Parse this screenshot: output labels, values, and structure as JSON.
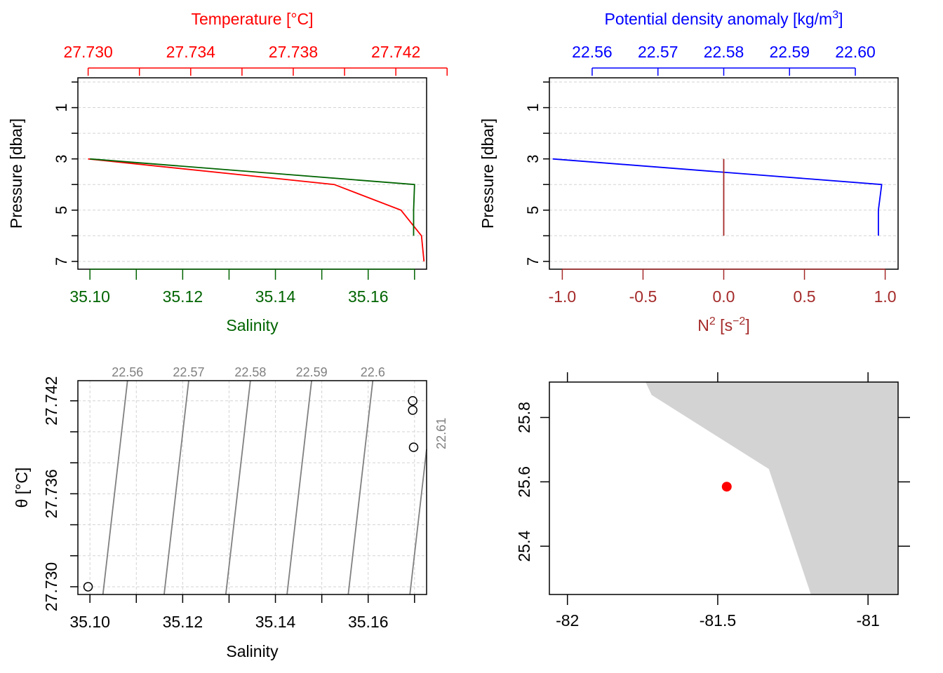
{
  "colors": {
    "temperature": "#ff0000",
    "salinity": "#006400",
    "density": "#0000ff",
    "n2": "#a52a2a",
    "contour": "#808080",
    "grid": "#d3d3d3",
    "land": "#d3d3d3",
    "station": "#ff0000",
    "axis": "#000000"
  },
  "chart_data": [
    {
      "id": "ts-profile",
      "type": "line",
      "top_title": "Temperature [°C]",
      "bottom_label": "Salinity",
      "ylabel": "Pressure [dbar]",
      "y_reversed": true,
      "ylim": [
        0,
        7.25
      ],
      "y_grid": [
        0,
        1,
        2,
        3,
        4,
        5,
        6,
        7
      ],
      "y_ticks": [
        0,
        1,
        2,
        3,
        4,
        5,
        6,
        7
      ],
      "y_tick_labels": [
        "1",
        "3",
        "5",
        "7"
      ],
      "y_tick_label_values": [
        1,
        3,
        5,
        7
      ],
      "top_axis": {
        "range": [
          27.7296,
          27.7432
        ],
        "ticks": [
          27.73,
          27.732,
          27.734,
          27.736,
          27.738,
          27.74,
          27.742,
          27.744
        ],
        "labels": [
          "27.730",
          "27.734",
          "27.738",
          "27.742"
        ],
        "label_values": [
          27.73,
          27.734,
          27.738,
          27.742
        ]
      },
      "bottom_axis": {
        "range": [
          35.0974,
          35.1726
        ],
        "ticks": [
          35.1,
          35.11,
          35.12,
          35.13,
          35.14,
          35.15,
          35.16,
          35.17
        ],
        "labels": [
          "35.10",
          "35.12",
          "35.14",
          "35.16"
        ],
        "label_values": [
          35.1,
          35.12,
          35.14,
          35.16
        ]
      },
      "series": [
        {
          "axis": "top",
          "color_key": "temperature",
          "points": [
            [
              27.73,
              3
            ],
            [
              27.7396,
              4
            ],
            [
              27.7422,
              5
            ],
            [
              27.743,
              6
            ],
            [
              27.7431,
              7
            ]
          ]
        },
        {
          "axis": "bottom",
          "color_key": "salinity",
          "points": [
            [
              35.1,
              3
            ],
            [
              35.17,
              4
            ],
            [
              35.1698,
              5
            ],
            [
              35.1698,
              6
            ]
          ]
        }
      ]
    },
    {
      "id": "density-profile",
      "type": "line",
      "top_title": "Potential density anomaly [kg/m",
      "top_title_sup": "3",
      "top_title_end": "]",
      "bottom_label": "N",
      "bottom_label_sup": "2",
      "bottom_label_mid": " [s",
      "bottom_label_sup2": "−2",
      "bottom_label_end": "]",
      "ylabel": "Pressure [dbar]",
      "y_reversed": true,
      "ylim": [
        0,
        7.25
      ],
      "y_grid": [
        0,
        1,
        2,
        3,
        4,
        5,
        6,
        7
      ],
      "y_ticks": [
        0,
        1,
        2,
        3,
        4,
        5,
        6,
        7
      ],
      "y_tick_labels": [
        "1",
        "3",
        "5",
        "7"
      ],
      "y_tick_label_values": [
        1,
        3,
        5,
        7
      ],
      "top_axis": {
        "range": [
          22.5535,
          22.6065
        ],
        "ticks": [
          22.56,
          22.57,
          22.58,
          22.59,
          22.6
        ],
        "labels": [
          "22.56",
          "22.57",
          "22.58",
          "22.59",
          "22.60"
        ],
        "label_values": [
          22.56,
          22.57,
          22.58,
          22.59,
          22.6
        ]
      },
      "bottom_axis": {
        "range": [
          -1.08,
          1.08
        ],
        "ticks": [
          -1.0,
          -0.5,
          0.0,
          0.5,
          1.0
        ],
        "labels": [
          "-1.0",
          "-0.5",
          "0.0",
          "0.5",
          "1.0"
        ],
        "label_values": [
          -1.0,
          -0.5,
          0.0,
          0.5,
          1.0
        ]
      },
      "series": [
        {
          "axis": "top",
          "color_key": "density",
          "points": [
            [
              22.554,
              3
            ],
            [
              22.604,
              4
            ],
            [
              22.6035,
              5
            ],
            [
              22.6035,
              6
            ]
          ]
        },
        {
          "axis": "bottom",
          "color_key": "n2",
          "points": [
            [
              0,
              3
            ],
            [
              0,
              6
            ]
          ]
        }
      ]
    },
    {
      "id": "ts-diagram",
      "type": "scatter",
      "xlabel": "Salinity",
      "ylabel": "θ [°C]",
      "xlim": [
        35.0974,
        35.1726
      ],
      "ylim": [
        27.7295,
        27.7433
      ],
      "x_ticks": [
        35.1,
        35.11,
        35.12,
        35.13,
        35.14,
        35.15,
        35.16,
        35.17
      ],
      "x_labels": [
        "35.10",
        "35.12",
        "35.14",
        "35.16"
      ],
      "x_label_values": [
        35.1,
        35.12,
        35.14,
        35.16
      ],
      "y_ticks": [
        27.73,
        27.732,
        27.734,
        27.736,
        27.738,
        27.74,
        27.742
      ],
      "y_labels": [
        "27.730",
        "27.736",
        "27.742"
      ],
      "y_label_values": [
        27.73,
        27.736,
        27.742
      ],
      "grid": true,
      "points": [
        [
          35.0996,
          27.73
        ],
        [
          35.1696,
          27.742
        ],
        [
          35.1696,
          27.7414
        ],
        [
          35.1698,
          27.739
        ]
      ],
      "isopycnals": [
        {
          "label": "22.56",
          "s_bottom": 35.1028,
          "s_top": 35.1081
        },
        {
          "label": "22.57",
          "s_bottom": 35.116,
          "s_top": 35.1213
        },
        {
          "label": "22.58",
          "s_bottom": 35.1293,
          "s_top": 35.1346
        },
        {
          "label": "22.59",
          "s_bottom": 35.1425,
          "s_top": 35.1478
        },
        {
          "label": "22.6",
          "s_bottom": 35.1557,
          "s_top": 35.161
        },
        {
          "label": "22.61",
          "s_bottom": 35.169,
          "s_top": 35.1743
        }
      ]
    },
    {
      "id": "station-map",
      "type": "map",
      "lon_range": [
        -82.06,
        -80.9
      ],
      "lat_range": [
        25.25,
        25.91
      ],
      "x_ticks": [
        -82,
        -81.5,
        -81
      ],
      "x_labels": [
        "-82",
        "-81.5",
        "-81"
      ],
      "y_ticks": [
        25.4,
        25.6,
        25.8
      ],
      "y_labels": [
        "25.4",
        "25.6",
        "25.8"
      ],
      "land": [
        [
          -81.74,
          25.91
        ],
        [
          -81.72,
          25.87
        ],
        [
          -81.33,
          25.64
        ],
        [
          -81.19,
          25.25
        ],
        [
          -80.9,
          25.25
        ],
        [
          -80.9,
          25.91
        ]
      ],
      "station": [
        -81.47,
        25.585
      ]
    }
  ]
}
